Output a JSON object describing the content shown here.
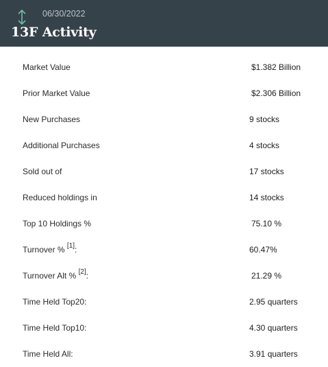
{
  "header": {
    "date": "06/30/2022",
    "title": "13F Activity",
    "icon": "up-down-arrow-icon",
    "accent_color": "#6fbfa6",
    "background_color": "#36424a"
  },
  "rows": [
    {
      "label": "Market Value",
      "value": "$1.382 Billion"
    },
    {
      "label": "Prior Market Value",
      "value": "$2.306 Billion"
    },
    {
      "label": "New Purchases",
      "value": "9 stocks"
    },
    {
      "label": "Additional Purchases",
      "value": "4 stocks"
    },
    {
      "label": "Sold out of",
      "value": "17 stocks"
    },
    {
      "label": "Reduced holdings in",
      "value": "14 stocks"
    },
    {
      "label": "Top 10 Holdings %",
      "value": "75.10 %"
    },
    {
      "label": "Turnover %",
      "footnote": "[1]",
      "suffix": ":",
      "value": "60.47%"
    },
    {
      "label": "Turnover Alt %",
      "footnote": "[2]",
      "suffix": ":",
      "value": "21.29 %"
    },
    {
      "label": "Time Held Top20:",
      "value": "2.95 quarters"
    },
    {
      "label": "Time Held Top10:",
      "value": "4.30 quarters"
    },
    {
      "label": "Time Held All:",
      "value": "3.91 quarters"
    }
  ]
}
